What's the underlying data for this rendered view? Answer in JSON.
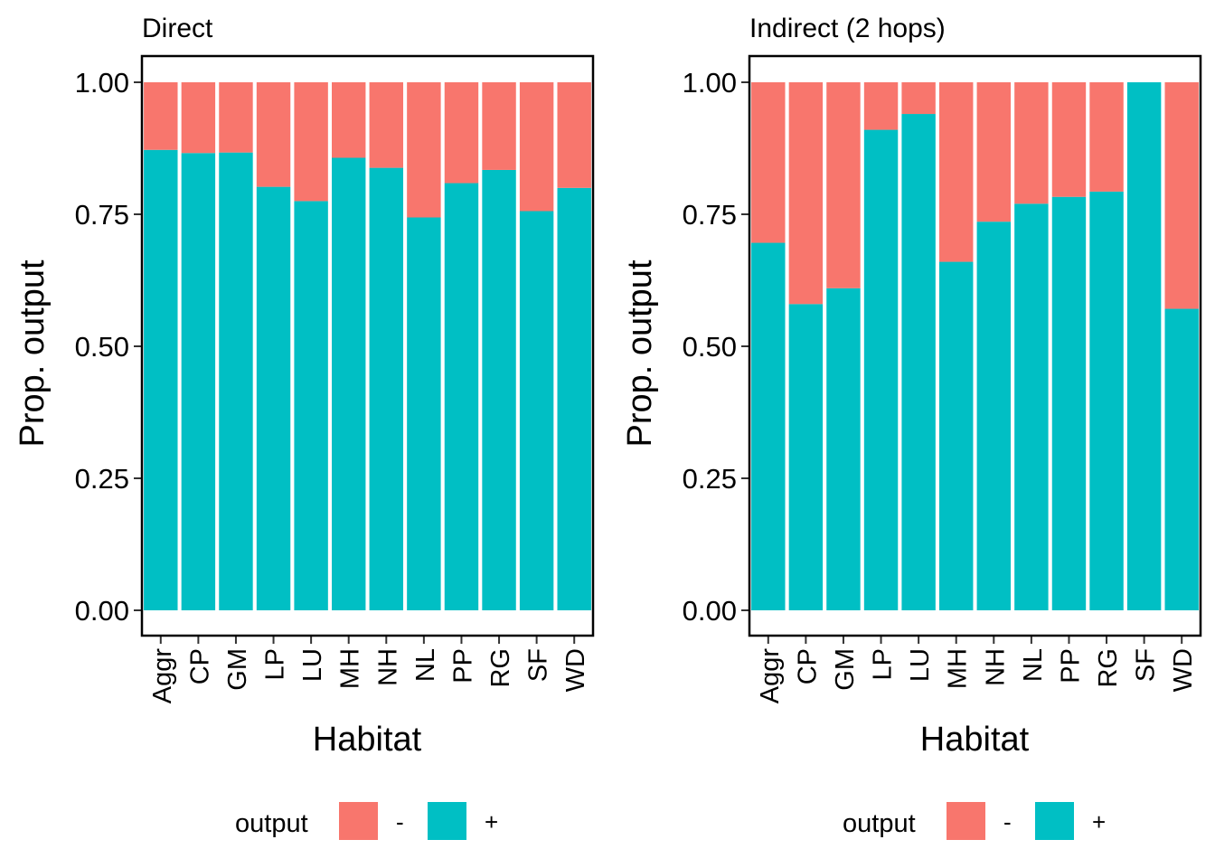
{
  "chart_data": [
    {
      "type": "bar",
      "stacked": true,
      "title": "Direct",
      "xlabel": "Habitat",
      "ylabel": "Prop. output",
      "ylim": [
        0,
        1
      ],
      "yticks": [
        "0.00",
        "0.25",
        "0.50",
        "0.75",
        "1.00"
      ],
      "categories": [
        "Aggr",
        "CP",
        "GM",
        "LP",
        "LU",
        "MH",
        "NH",
        "NL",
        "PP",
        "RG",
        "SF",
        "WD"
      ],
      "series": [
        {
          "name": "+",
          "color": "#00BFC4",
          "values": [
            0.872,
            0.866,
            0.867,
            0.802,
            0.775,
            0.857,
            0.838,
            0.744,
            0.809,
            0.834,
            0.756,
            0.8
          ]
        },
        {
          "name": "-",
          "color": "#F8766D",
          "values": [
            0.128,
            0.134,
            0.133,
            0.198,
            0.225,
            0.143,
            0.162,
            0.256,
            0.191,
            0.166,
            0.244,
            0.2
          ]
        }
      ],
      "legend": {
        "title": "output",
        "position": "bottom",
        "items": [
          {
            "label": "-",
            "color": "#F8766D"
          },
          {
            "label": "+",
            "color": "#00BFC4"
          }
        ]
      }
    },
    {
      "type": "bar",
      "stacked": true,
      "title": "Indirect (2 hops)",
      "xlabel": "Habitat",
      "ylabel": "Prop. output",
      "ylim": [
        0,
        1
      ],
      "yticks": [
        "0.00",
        "0.25",
        "0.50",
        "0.75",
        "1.00"
      ],
      "categories": [
        "Aggr",
        "CP",
        "GM",
        "LP",
        "LU",
        "MH",
        "NH",
        "NL",
        "PP",
        "RG",
        "SF",
        "WD"
      ],
      "series": [
        {
          "name": "+",
          "color": "#00BFC4",
          "values": [
            0.696,
            0.58,
            0.61,
            0.91,
            0.94,
            0.66,
            0.736,
            0.77,
            0.783,
            0.793,
            1.0,
            0.571
          ]
        },
        {
          "name": "-",
          "color": "#F8766D",
          "values": [
            0.304,
            0.42,
            0.39,
            0.09,
            0.06,
            0.34,
            0.264,
            0.23,
            0.217,
            0.207,
            0.0,
            0.429
          ]
        }
      ],
      "legend": {
        "title": "output",
        "position": "bottom",
        "items": [
          {
            "label": "-",
            "color": "#F8766D"
          },
          {
            "label": "+",
            "color": "#00BFC4"
          }
        ]
      }
    }
  ]
}
